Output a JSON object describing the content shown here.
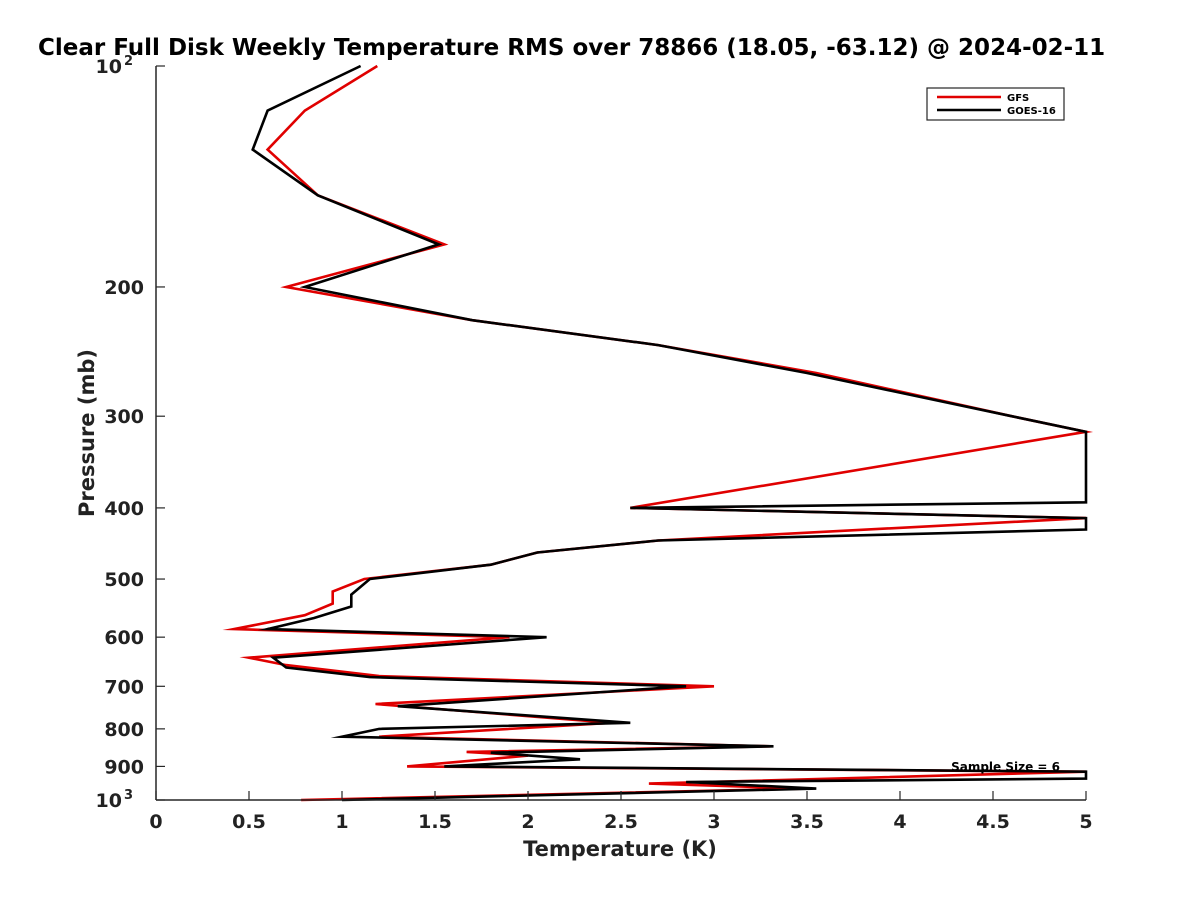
{
  "chart_data": {
    "type": "line",
    "title": "Clear Full Disk Weekly Temperature RMS over 78866 (18.05, -63.12) @ 2024-02-11",
    "xlabel": "Temperature (K)",
    "ylabel": "Pressure (mb)",
    "xlim": [
      0,
      5
    ],
    "ylim": [
      100,
      1000
    ],
    "y_scale": "log",
    "y_reversed": true,
    "x_ticks": [
      0,
      0.5,
      1,
      1.5,
      2,
      2.5,
      3,
      3.5,
      4,
      4.5,
      5
    ],
    "x_tick_labels": [
      "0",
      "0.5",
      "1",
      "1.5",
      "2",
      "2.5",
      "3",
      "3.5",
      "4",
      "4.5",
      "5"
    ],
    "y_ticks": [
      {
        "value": 100,
        "base": "10",
        "exp": "2"
      },
      {
        "value": 200,
        "label": "200"
      },
      {
        "value": 300,
        "label": "300"
      },
      {
        "value": 400,
        "label": "400"
      },
      {
        "value": 500,
        "label": "500"
      },
      {
        "value": 600,
        "label": "600"
      },
      {
        "value": 700,
        "label": "700"
      },
      {
        "value": 800,
        "label": "800"
      },
      {
        "value": 900,
        "label": "900"
      },
      {
        "value": 1000,
        "base": "10",
        "exp": "3"
      }
    ],
    "grid": false,
    "legend_position": "top-right",
    "annotation": "Sample Size = 6",
    "series": [
      {
        "name": "GFS",
        "color": "#e00000",
        "points": [
          [
            1.19,
            100
          ],
          [
            0.8,
            115
          ],
          [
            0.6,
            130
          ],
          [
            0.87,
            150
          ],
          [
            1.55,
            175
          ],
          [
            0.7,
            200
          ],
          [
            1.7,
            222
          ],
          [
            2.7,
            240
          ],
          [
            3.55,
            262
          ],
          [
            4.6,
            300
          ],
          [
            5.0,
            315
          ],
          [
            2.55,
            400
          ],
          [
            5.0,
            413
          ],
          [
            2.7,
            443
          ],
          [
            2.05,
            460
          ],
          [
            1.8,
            478
          ],
          [
            1.12,
            500
          ],
          [
            0.95,
            520
          ],
          [
            0.95,
            540
          ],
          [
            0.8,
            560
          ],
          [
            0.42,
            585
          ],
          [
            1.9,
            600
          ],
          [
            0.5,
            640
          ],
          [
            0.7,
            655
          ],
          [
            1.2,
            678
          ],
          [
            3.0,
            700
          ],
          [
            1.18,
            740
          ],
          [
            2.45,
            785
          ],
          [
            1.2,
            820
          ],
          [
            3.3,
            845
          ],
          [
            1.67,
            860
          ],
          [
            2.0,
            870
          ],
          [
            1.35,
            900
          ],
          [
            5.0,
            915
          ],
          [
            2.65,
            950
          ],
          [
            3.5,
            965
          ],
          [
            0.78,
            1000
          ]
        ]
      },
      {
        "name": "GOES-16",
        "color": "#000000",
        "points": [
          [
            1.1,
            100
          ],
          [
            0.6,
            115
          ],
          [
            0.52,
            130
          ],
          [
            0.87,
            150
          ],
          [
            1.52,
            175
          ],
          [
            0.8,
            200
          ],
          [
            1.7,
            222
          ],
          [
            2.7,
            240
          ],
          [
            3.5,
            262
          ],
          [
            4.6,
            300
          ],
          [
            5.0,
            315
          ],
          [
            5.0,
            393
          ],
          [
            2.55,
            400
          ],
          [
            5.0,
            413
          ],
          [
            5.0,
            428
          ],
          [
            2.7,
            443
          ],
          [
            2.05,
            460
          ],
          [
            1.8,
            478
          ],
          [
            1.15,
            500
          ],
          [
            1.05,
            525
          ],
          [
            1.05,
            545
          ],
          [
            0.85,
            565
          ],
          [
            0.6,
            585
          ],
          [
            2.1,
            600
          ],
          [
            0.63,
            640
          ],
          [
            0.7,
            660
          ],
          [
            1.15,
            680
          ],
          [
            2.85,
            700
          ],
          [
            1.3,
            745
          ],
          [
            2.55,
            785
          ],
          [
            1.2,
            800
          ],
          [
            1.0,
            820
          ],
          [
            3.32,
            845
          ],
          [
            1.8,
            862
          ],
          [
            2.28,
            880
          ],
          [
            1.55,
            900
          ],
          [
            5.0,
            915
          ],
          [
            5.0,
            935
          ],
          [
            2.85,
            945
          ],
          [
            3.55,
            965
          ],
          [
            1.0,
            1000
          ]
        ]
      }
    ]
  }
}
